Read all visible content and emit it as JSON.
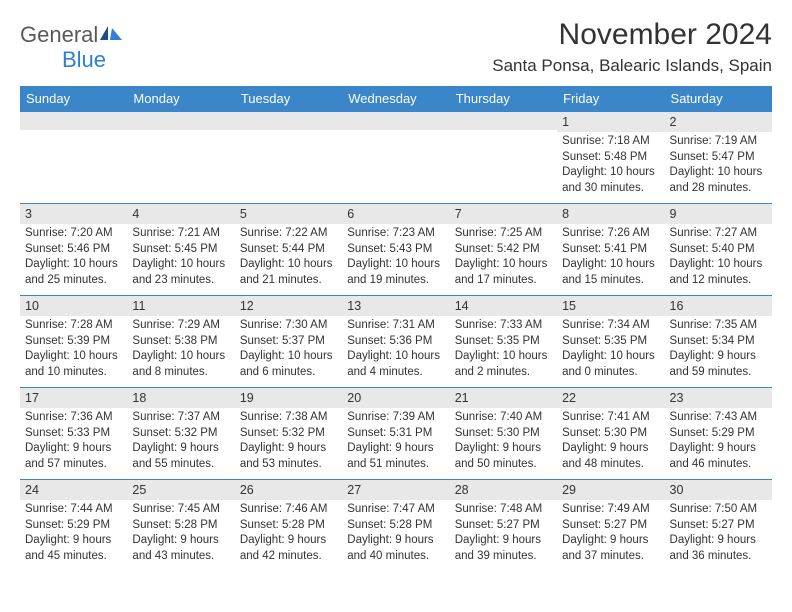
{
  "brand": {
    "name_top": "General",
    "name_bottom": "Blue"
  },
  "title": "November 2024",
  "location": "Santa Ponsa, Balearic Islands, Spain",
  "colors": {
    "header_bg": "#3b86c8",
    "border": "#3b86c8",
    "daynum_bg": "#e8e8e8",
    "logo_blue": "#2f7ed8",
    "logo_gray": "#5a5a5a"
  },
  "day_headers": [
    "Sunday",
    "Monday",
    "Tuesday",
    "Wednesday",
    "Thursday",
    "Friday",
    "Saturday"
  ],
  "weeks": [
    [
      null,
      null,
      null,
      null,
      null,
      {
        "n": "1",
        "sunrise": "7:18 AM",
        "sunset": "5:48 PM",
        "dl": "10 hours and 30 minutes."
      },
      {
        "n": "2",
        "sunrise": "7:19 AM",
        "sunset": "5:47 PM",
        "dl": "10 hours and 28 minutes."
      }
    ],
    [
      {
        "n": "3",
        "sunrise": "7:20 AM",
        "sunset": "5:46 PM",
        "dl": "10 hours and 25 minutes."
      },
      {
        "n": "4",
        "sunrise": "7:21 AM",
        "sunset": "5:45 PM",
        "dl": "10 hours and 23 minutes."
      },
      {
        "n": "5",
        "sunrise": "7:22 AM",
        "sunset": "5:44 PM",
        "dl": "10 hours and 21 minutes."
      },
      {
        "n": "6",
        "sunrise": "7:23 AM",
        "sunset": "5:43 PM",
        "dl": "10 hours and 19 minutes."
      },
      {
        "n": "7",
        "sunrise": "7:25 AM",
        "sunset": "5:42 PM",
        "dl": "10 hours and 17 minutes."
      },
      {
        "n": "8",
        "sunrise": "7:26 AM",
        "sunset": "5:41 PM",
        "dl": "10 hours and 15 minutes."
      },
      {
        "n": "9",
        "sunrise": "7:27 AM",
        "sunset": "5:40 PM",
        "dl": "10 hours and 12 minutes."
      }
    ],
    [
      {
        "n": "10",
        "sunrise": "7:28 AM",
        "sunset": "5:39 PM",
        "dl": "10 hours and 10 minutes."
      },
      {
        "n": "11",
        "sunrise": "7:29 AM",
        "sunset": "5:38 PM",
        "dl": "10 hours and 8 minutes."
      },
      {
        "n": "12",
        "sunrise": "7:30 AM",
        "sunset": "5:37 PM",
        "dl": "10 hours and 6 minutes."
      },
      {
        "n": "13",
        "sunrise": "7:31 AM",
        "sunset": "5:36 PM",
        "dl": "10 hours and 4 minutes."
      },
      {
        "n": "14",
        "sunrise": "7:33 AM",
        "sunset": "5:35 PM",
        "dl": "10 hours and 2 minutes."
      },
      {
        "n": "15",
        "sunrise": "7:34 AM",
        "sunset": "5:35 PM",
        "dl": "10 hours and 0 minutes."
      },
      {
        "n": "16",
        "sunrise": "7:35 AM",
        "sunset": "5:34 PM",
        "dl": "9 hours and 59 minutes."
      }
    ],
    [
      {
        "n": "17",
        "sunrise": "7:36 AM",
        "sunset": "5:33 PM",
        "dl": "9 hours and 57 minutes."
      },
      {
        "n": "18",
        "sunrise": "7:37 AM",
        "sunset": "5:32 PM",
        "dl": "9 hours and 55 minutes."
      },
      {
        "n": "19",
        "sunrise": "7:38 AM",
        "sunset": "5:32 PM",
        "dl": "9 hours and 53 minutes."
      },
      {
        "n": "20",
        "sunrise": "7:39 AM",
        "sunset": "5:31 PM",
        "dl": "9 hours and 51 minutes."
      },
      {
        "n": "21",
        "sunrise": "7:40 AM",
        "sunset": "5:30 PM",
        "dl": "9 hours and 50 minutes."
      },
      {
        "n": "22",
        "sunrise": "7:41 AM",
        "sunset": "5:30 PM",
        "dl": "9 hours and 48 minutes."
      },
      {
        "n": "23",
        "sunrise": "7:43 AM",
        "sunset": "5:29 PM",
        "dl": "9 hours and 46 minutes."
      }
    ],
    [
      {
        "n": "24",
        "sunrise": "7:44 AM",
        "sunset": "5:29 PM",
        "dl": "9 hours and 45 minutes."
      },
      {
        "n": "25",
        "sunrise": "7:45 AM",
        "sunset": "5:28 PM",
        "dl": "9 hours and 43 minutes."
      },
      {
        "n": "26",
        "sunrise": "7:46 AM",
        "sunset": "5:28 PM",
        "dl": "9 hours and 42 minutes."
      },
      {
        "n": "27",
        "sunrise": "7:47 AM",
        "sunset": "5:28 PM",
        "dl": "9 hours and 40 minutes."
      },
      {
        "n": "28",
        "sunrise": "7:48 AM",
        "sunset": "5:27 PM",
        "dl": "9 hours and 39 minutes."
      },
      {
        "n": "29",
        "sunrise": "7:49 AM",
        "sunset": "5:27 PM",
        "dl": "9 hours and 37 minutes."
      },
      {
        "n": "30",
        "sunrise": "7:50 AM",
        "sunset": "5:27 PM",
        "dl": "9 hours and 36 minutes."
      }
    ]
  ],
  "labels": {
    "sunrise": "Sunrise:",
    "sunset": "Sunset:",
    "daylight": "Daylight:"
  }
}
